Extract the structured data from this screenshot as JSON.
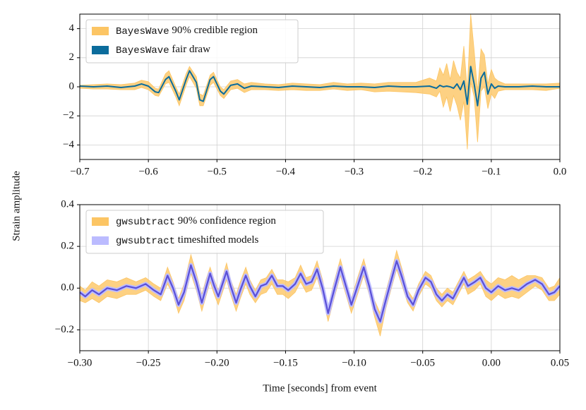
{
  "chart_data": [
    {
      "type": "line",
      "ylabel": "Strain amplitude",
      "grid": true,
      "legend": "upper left",
      "xlim": [
        -0.7,
        0.0
      ],
      "xticks": [
        {
          "value": -0.7,
          "label": "−0.7"
        },
        {
          "value": -0.6,
          "label": "−0.6"
        },
        {
          "value": -0.5,
          "label": "−0.5"
        },
        {
          "value": -0.4,
          "label": "−0.4"
        },
        {
          "value": -0.3,
          "label": "−0.3"
        },
        {
          "value": -0.2,
          "label": "−0.2"
        },
        {
          "value": -0.1,
          "label": "−0.1"
        },
        {
          "value": 0.0,
          "label": "0.0"
        }
      ],
      "ylim": [
        -5,
        5
      ],
      "yticks": [
        {
          "value": -4,
          "label": "−4"
        },
        {
          "value": -2,
          "label": "−2"
        },
        0,
        2,
        4
      ],
      "x": [
        -0.7,
        -0.68,
        -0.66,
        -0.64,
        -0.62,
        -0.61,
        -0.6,
        -0.59,
        -0.585,
        -0.575,
        -0.57,
        -0.56,
        -0.555,
        -0.545,
        -0.54,
        -0.53,
        -0.525,
        -0.52,
        -0.51,
        -0.505,
        -0.495,
        -0.49,
        -0.48,
        -0.47,
        -0.46,
        -0.45,
        -0.43,
        -0.41,
        -0.39,
        -0.37,
        -0.35,
        -0.33,
        -0.31,
        -0.29,
        -0.27,
        -0.25,
        -0.23,
        -0.21,
        -0.19,
        -0.18,
        -0.175,
        -0.17,
        -0.165,
        -0.16,
        -0.155,
        -0.15,
        -0.145,
        -0.14,
        -0.135,
        -0.13,
        -0.125,
        -0.12,
        -0.115,
        -0.11,
        -0.105,
        -0.1,
        -0.095,
        -0.09,
        -0.08,
        -0.06,
        -0.04,
        -0.02,
        0.0
      ],
      "series": [
        {
          "name": "BayesWave 90% credible region",
          "color": "#fcc564",
          "lower": [
            -0.1,
            -0.15,
            -0.15,
            -0.2,
            -0.2,
            -0.05,
            -0.2,
            -0.6,
            -0.65,
            0.2,
            0.3,
            -0.7,
            -1.3,
            0.1,
            0.7,
            -0.1,
            -1.3,
            -1.3,
            0.1,
            0.3,
            -0.6,
            -0.8,
            -0.2,
            -0.1,
            -0.4,
            -0.2,
            -0.2,
            -0.25,
            -0.2,
            -0.25,
            -0.25,
            -0.15,
            -0.25,
            -0.2,
            -0.35,
            -0.3,
            -0.35,
            -0.4,
            -0.5,
            -0.7,
            -0.3,
            -1.4,
            -0.7,
            -1.7,
            -0.6,
            -1.3,
            -2.3,
            -1.0,
            -4.3,
            0.3,
            -0.7,
            -3.8,
            -0.3,
            0.0,
            -1.5,
            -0.5,
            -0.8,
            -0.3,
            -0.2,
            -0.2,
            -0.2,
            -0.25,
            -0.1
          ],
          "upper": [
            0.1,
            0.15,
            0.2,
            0.15,
            0.25,
            0.45,
            0.35,
            -0.1,
            -0.15,
            0.9,
            1.1,
            0.0,
            -0.5,
            0.9,
            1.4,
            0.7,
            -0.5,
            -0.6,
            0.8,
            1.0,
            0.0,
            -0.2,
            0.4,
            0.5,
            0.2,
            0.3,
            0.2,
            0.15,
            0.25,
            0.2,
            0.15,
            0.3,
            0.2,
            0.25,
            0.2,
            0.3,
            0.3,
            0.3,
            0.6,
            0.4,
            1.3,
            0.8,
            1.6,
            0.5,
            1.8,
            1.0,
            0.6,
            2.8,
            -0.3,
            5.0,
            2.5,
            -0.3,
            2.6,
            2.2,
            0.2,
            1.2,
            0.6,
            0.4,
            0.2,
            0.2,
            0.2,
            0.2,
            0.25
          ]
        },
        {
          "name": "BayesWave fair draw",
          "color": "#0b6c9c",
          "values": [
            0.05,
            0,
            0.05,
            -0.05,
            0.05,
            0.2,
            0.05,
            -0.35,
            -0.4,
            0.5,
            0.7,
            -0.3,
            -0.9,
            0.5,
            1.1,
            0.3,
            -0.9,
            -1.0,
            0.5,
            0.7,
            -0.3,
            -0.5,
            0.1,
            0.2,
            -0.1,
            0.05,
            0,
            -0.05,
            0.05,
            0,
            -0.05,
            0.05,
            0,
            0,
            -0.05,
            0.05,
            0,
            0,
            0.05,
            -0.1,
            0.1,
            0,
            0.05,
            0,
            -0.1,
            0.2,
            -0.2,
            0.4,
            -1.2,
            1.4,
            0.2,
            -1.3,
            0.6,
            1.0,
            -0.5,
            0.2,
            -0.1,
            0.05,
            0,
            0,
            0.05,
            0,
            0
          ]
        }
      ]
    },
    {
      "type": "line",
      "xlabel": "Time [seconds] from event",
      "grid": true,
      "legend": "upper left",
      "xlim": [
        -0.3,
        0.05
      ],
      "xticks": [
        {
          "value": -0.3,
          "label": "−0.30"
        },
        {
          "value": -0.25,
          "label": "−0.25"
        },
        {
          "value": -0.2,
          "label": "−0.20"
        },
        {
          "value": -0.15,
          "label": "−0.15"
        },
        {
          "value": -0.1,
          "label": "−0.10"
        },
        {
          "value": -0.05,
          "label": "−0.05"
        },
        {
          "value": 0.0,
          "label": "0.00"
        },
        0.05
      ],
      "ylim": [
        -0.3,
        0.4
      ],
      "yticks": [
        {
          "value": -0.2,
          "label": "−0.2"
        },
        {
          "value": 0.0,
          "label": "0.0"
        },
        0.2,
        0.4
      ],
      "x": [
        -0.3,
        -0.296,
        -0.291,
        -0.286,
        -0.28,
        -0.273,
        -0.266,
        -0.259,
        -0.252,
        -0.246,
        -0.241,
        -0.236,
        -0.232,
        -0.228,
        -0.224,
        -0.219,
        -0.215,
        -0.211,
        -0.208,
        -0.205,
        -0.202,
        -0.199,
        -0.196,
        -0.193,
        -0.19,
        -0.186,
        -0.183,
        -0.179,
        -0.176,
        -0.172,
        -0.168,
        -0.164,
        -0.16,
        -0.156,
        -0.152,
        -0.148,
        -0.143,
        -0.139,
        -0.135,
        -0.131,
        -0.127,
        -0.123,
        -0.119,
        -0.115,
        -0.11,
        -0.106,
        -0.102,
        -0.098,
        -0.093,
        -0.089,
        -0.085,
        -0.081,
        -0.077,
        -0.072,
        -0.069,
        -0.065,
        -0.061,
        -0.057,
        -0.053,
        -0.048,
        -0.044,
        -0.04,
        -0.036,
        -0.032,
        -0.028,
        -0.024,
        -0.02,
        -0.017,
        -0.012,
        -0.008,
        -0.004,
        0,
        0.005,
        0.01,
        0.015,
        0.02,
        0.026,
        0.032,
        0.037,
        0.042,
        0.046,
        0.05
      ],
      "series": [
        {
          "name": "gwsubtract 90% confidence region",
          "color": "#fcc564",
          "lower": [
            -0.06,
            -0.07,
            -0.05,
            -0.07,
            -0.04,
            -0.05,
            -0.03,
            -0.03,
            -0.01,
            -0.04,
            -0.06,
            0.02,
            -0.03,
            -0.12,
            -0.06,
            0.07,
            -0.01,
            -0.11,
            -0.04,
            0.03,
            -0.03,
            -0.08,
            -0.02,
            0.04,
            -0.03,
            -0.11,
            -0.05,
            0.02,
            -0.03,
            -0.07,
            -0.03,
            -0.02,
            0.02,
            -0.03,
            -0.03,
            -0.05,
            -0.02,
            0.03,
            -0.02,
            -0.01,
            0.05,
            -0.04,
            -0.16,
            -0.06,
            0.06,
            -0.03,
            -0.12,
            -0.04,
            0.06,
            -0.03,
            -0.14,
            -0.23,
            -0.1,
            0.02,
            0.09,
            0.01,
            -0.07,
            -0.11,
            -0.04,
            0.02,
            0.0,
            -0.06,
            -0.09,
            -0.06,
            -0.08,
            -0.03,
            0.02,
            -0.03,
            -0.01,
            0.02,
            -0.04,
            -0.06,
            -0.03,
            -0.05,
            -0.04,
            -0.05,
            -0.02,
            0.01,
            -0.01,
            -0.06,
            -0.06,
            -0.03
          ],
          "upper": [
            0.01,
            -0.01,
            0.03,
            0.01,
            0.04,
            0.03,
            0.05,
            0.03,
            0.05,
            0.02,
            0.0,
            0.1,
            0.03,
            -0.05,
            0.02,
            0.16,
            0.07,
            -0.03,
            0.04,
            0.1,
            0.04,
            -0.01,
            0.05,
            0.12,
            0.04,
            -0.03,
            0.03,
            0.1,
            0.04,
            -0.01,
            0.04,
            0.05,
            0.09,
            0.04,
            0.04,
            0.03,
            0.05,
            0.11,
            0.05,
            0.06,
            0.13,
            0.04,
            -0.09,
            0.02,
            0.14,
            0.04,
            -0.05,
            0.04,
            0.14,
            0.04,
            -0.06,
            -0.12,
            -0.02,
            0.1,
            0.18,
            0.09,
            -0.01,
            -0.05,
            0.02,
            0.08,
            0.06,
            0.0,
            -0.03,
            0.0,
            -0.02,
            0.03,
            0.08,
            0.04,
            0.06,
            0.08,
            0.04,
            0.02,
            0.05,
            0.04,
            0.06,
            0.04,
            0.06,
            0.06,
            0.05,
            0.0,
            0.01,
            0.05
          ]
        },
        {
          "name": "gwsubtract timeshifted models",
          "color": "#bbbbff",
          "values": [
            -0.02,
            -0.04,
            -0.01,
            -0.03,
            0,
            -0.01,
            0.01,
            0,
            0.02,
            -0.01,
            -0.03,
            0.06,
            0,
            -0.08,
            -0.02,
            0.11,
            0.03,
            -0.07,
            0,
            0.07,
            0.01,
            -0.04,
            0.02,
            0.08,
            0.01,
            -0.07,
            -0.01,
            0.06,
            0.01,
            -0.04,
            0.01,
            0.02,
            0.06,
            0.01,
            0.01,
            -0.01,
            0.02,
            0.07,
            0.02,
            0.03,
            0.09,
            0,
            -0.12,
            -0.02,
            0.1,
            0.01,
            -0.08,
            0,
            0.1,
            0.01,
            -0.1,
            -0.16,
            -0.06,
            0.06,
            0.13,
            0.05,
            -0.04,
            -0.08,
            -0.01,
            0.05,
            0.03,
            -0.03,
            -0.06,
            -0.03,
            -0.05,
            0,
            0.05,
            0.01,
            0.03,
            0.05,
            0,
            -0.02,
            0.01,
            -0.01,
            0,
            -0.01,
            0.02,
            0.04,
            0.02,
            -0.03,
            -0.02,
            0.01
          ]
        }
      ]
    }
  ]
}
